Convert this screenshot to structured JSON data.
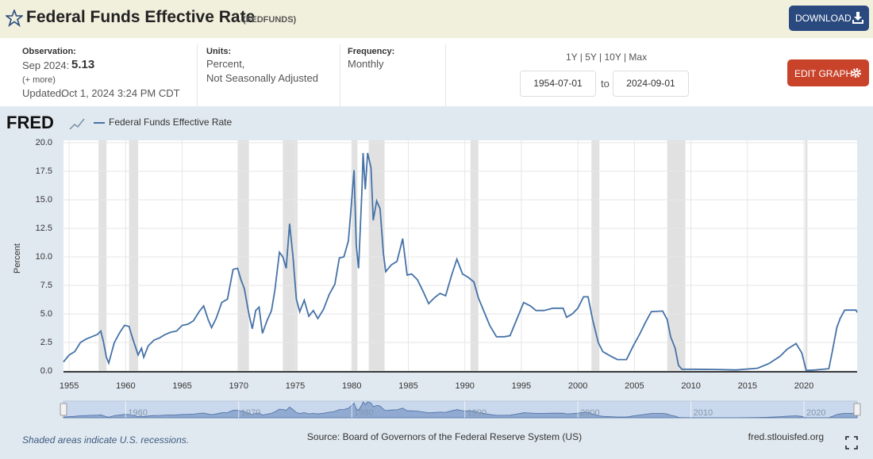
{
  "header": {
    "title": "Federal Funds Effective Rate",
    "code": "(FEDFUNDS)",
    "download": "DOWNLOAD"
  },
  "info": {
    "observation_label": "Observation:",
    "observation_date": "Sep 2024:",
    "observation_value": "5.13",
    "more": "(+ more)",
    "updated_label": "Updated:",
    "updated": "Oct 1, 2024 3:24 PM CDT",
    "units_label": "Units:",
    "units_line1": "Percent,",
    "units_line2": "Not Seasonally Adjusted",
    "frequency_label": "Frequency:",
    "frequency": "Monthly",
    "ranges": "1Y | 5Y | 10Y | Max",
    "start_date": "1954-07-01",
    "to": "to",
    "end_date": "2024-09-01",
    "edit_graph": "EDIT GRAPH"
  },
  "chart_data": {
    "type": "line",
    "logo": "FRED",
    "ylabel": "Percent",
    "x": [
      1954.5,
      1955.0,
      1955.5,
      1956.0,
      1956.5,
      1957.0,
      1957.5,
      1957.8,
      1958.0,
      1958.3,
      1958.5,
      1958.8,
      1959.0,
      1959.5,
      1959.9,
      1960.3,
      1960.6,
      1960.9,
      1961.1,
      1961.4,
      1961.6,
      1962.0,
      1962.5,
      1963.0,
      1963.5,
      1964.0,
      1964.5,
      1965.0,
      1965.5,
      1966.0,
      1966.5,
      1966.9,
      1967.3,
      1967.6,
      1968.0,
      1968.5,
      1969.0,
      1969.5,
      1969.9,
      1970.2,
      1970.5,
      1970.9,
      1971.2,
      1971.5,
      1971.8,
      1972.1,
      1972.5,
      1972.9,
      1973.2,
      1973.6,
      1973.9,
      1974.2,
      1974.5,
      1974.8,
      1975.1,
      1975.4,
      1975.8,
      1976.2,
      1976.6,
      1977.0,
      1977.5,
      1978.0,
      1978.5,
      1978.9,
      1979.3,
      1979.7,
      1979.9,
      1980.2,
      1980.4,
      1980.6,
      1980.9,
      1981.0,
      1981.2,
      1981.4,
      1981.7,
      1981.9,
      1982.2,
      1982.5,
      1982.8,
      1983.0,
      1983.5,
      1984.0,
      1984.5,
      1984.9,
      1985.3,
      1985.8,
      1986.3,
      1986.8,
      1987.3,
      1987.8,
      1988.3,
      1988.8,
      1989.3,
      1989.8,
      1990.3,
      1990.8,
      1991.2,
      1991.7,
      1992.2,
      1992.8,
      1993.5,
      1994.0,
      1994.5,
      1995.2,
      1995.8,
      1996.3,
      1997.0,
      1997.8,
      1998.7,
      1999.0,
      1999.5,
      2000.0,
      2000.5,
      2000.9,
      2001.3,
      2001.8,
      2002.2,
      2002.9,
      2003.5,
      2004.3,
      2004.9,
      2005.5,
      2006.0,
      2006.5,
      2007.5,
      2007.9,
      2008.2,
      2008.6,
      2008.9,
      2009.2,
      2010.0,
      2012.0,
      2014.0,
      2015.9,
      2016.9,
      2017.9,
      2018.5,
      2019.3,
      2019.8,
      2020.2,
      2021.0,
      2022.2,
      2022.5,
      2022.9,
      2023.2,
      2023.6,
      2024.6,
      2024.7
    ],
    "series": [
      {
        "name": "Federal Funds Effective Rate",
        "color": "#4572a7",
        "values": [
          0.8,
          1.4,
          1.7,
          2.5,
          2.8,
          3.0,
          3.2,
          3.5,
          2.7,
          1.2,
          0.7,
          1.8,
          2.5,
          3.4,
          4.0,
          3.9,
          2.9,
          2.0,
          1.4,
          2.0,
          1.2,
          2.2,
          2.7,
          2.9,
          3.2,
          3.4,
          3.5,
          4.0,
          4.1,
          4.4,
          5.2,
          5.7,
          4.5,
          3.8,
          4.6,
          6.0,
          6.3,
          8.9,
          9.0,
          8.0,
          7.2,
          5.0,
          3.7,
          5.3,
          5.6,
          3.3,
          4.4,
          5.3,
          7.1,
          10.4,
          10.0,
          9.0,
          12.9,
          10.0,
          6.3,
          5.2,
          6.2,
          4.8,
          5.3,
          4.6,
          5.4,
          6.7,
          7.6,
          9.9,
          10.0,
          11.4,
          13.8,
          17.6,
          11.0,
          9.0,
          15.9,
          19.1,
          15.9,
          19.1,
          17.8,
          13.2,
          14.9,
          14.2,
          10.3,
          8.7,
          9.3,
          9.6,
          11.6,
          8.4,
          8.5,
          8.0,
          7.0,
          5.9,
          6.4,
          6.8,
          6.6,
          8.3,
          9.8,
          8.5,
          8.2,
          7.8,
          6.4,
          5.2,
          4.0,
          3.0,
          3.0,
          3.1,
          4.3,
          6.0,
          5.7,
          5.3,
          5.3,
          5.5,
          5.5,
          4.7,
          5.0,
          5.5,
          6.5,
          6.5,
          4.5,
          2.5,
          1.7,
          1.3,
          1.0,
          1.0,
          2.2,
          3.3,
          4.3,
          5.2,
          5.25,
          4.5,
          3.0,
          2.0,
          0.5,
          0.15,
          0.15,
          0.14,
          0.09,
          0.24,
          0.65,
          1.3,
          1.9,
          2.4,
          1.6,
          0.05,
          0.09,
          0.2,
          1.7,
          3.8,
          4.6,
          5.33,
          5.33,
          5.13
        ]
      }
    ],
    "recessions": [
      [
        1957.6,
        1958.3
      ],
      [
        1960.3,
        1961.1
      ],
      [
        1969.9,
        1970.9
      ],
      [
        1973.9,
        1975.2
      ],
      [
        1980.0,
        1980.5
      ],
      [
        1981.5,
        1982.9
      ],
      [
        1990.5,
        1991.2
      ],
      [
        2001.2,
        2001.9
      ],
      [
        2007.9,
        2009.5
      ],
      [
        2020.1,
        2020.3
      ]
    ],
    "recession_color": "#e1e1e1",
    "xlim": [
      1954.5,
      2024.7
    ],
    "ylim": [
      0,
      20
    ],
    "xticks": [
      1955,
      1960,
      1965,
      1970,
      1975,
      1980,
      1985,
      1990,
      1995,
      2000,
      2005,
      2010,
      2015,
      2020
    ],
    "yticks": [
      {
        "value": 0,
        "label": "0.0"
      },
      {
        "value": 2.5,
        "label": "2.5"
      },
      {
        "value": 5,
        "label": "5.0"
      },
      {
        "value": 7.5,
        "label": "7.5"
      },
      {
        "value": 10,
        "label": "10.0"
      },
      {
        "value": 12.5,
        "label": "12.5"
      },
      {
        "value": 15,
        "label": "15.0"
      },
      {
        "value": 17.5,
        "label": "17.5"
      },
      {
        "value": 20,
        "label": "20.0"
      }
    ],
    "grid": true,
    "legend": "top-left",
    "navigator_xticks": [
      1960,
      1970,
      1980,
      1990,
      2000,
      2010,
      2020
    ]
  },
  "footer": {
    "note": "Shaded areas indicate U.S. recessions.",
    "source": "Source: Board of Governors of the Federal Reserve System (US)",
    "site": "fred.stlouisfed.org"
  }
}
